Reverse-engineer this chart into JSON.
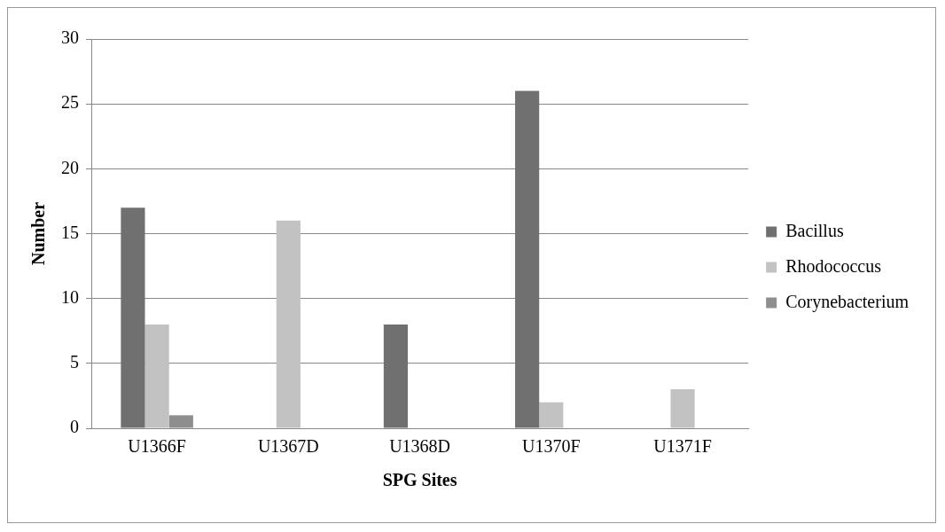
{
  "chart_data": {
    "type": "bar",
    "xlabel": "SPG Sites",
    "ylabel": "Number",
    "categories": [
      "U1366F",
      "U1367D",
      "U1368D",
      "U1370F",
      "U1371F"
    ],
    "series": [
      {
        "name": "Bacillus",
        "color": "#707070",
        "values": [
          17,
          0,
          8,
          26,
          0
        ]
      },
      {
        "name": "Rhodococcus",
        "color": "#c2c2c2",
        "values": [
          8,
          16,
          0,
          2,
          3
        ]
      },
      {
        "name": "Corynebacterium",
        "color": "#8e8e8e",
        "values": [
          1,
          0,
          0,
          0,
          0
        ]
      }
    ],
    "ylim": [
      0,
      30
    ],
    "yticks": [
      0,
      5,
      10,
      15,
      20,
      25,
      30
    ],
    "grid": "y",
    "legend": "right"
  }
}
